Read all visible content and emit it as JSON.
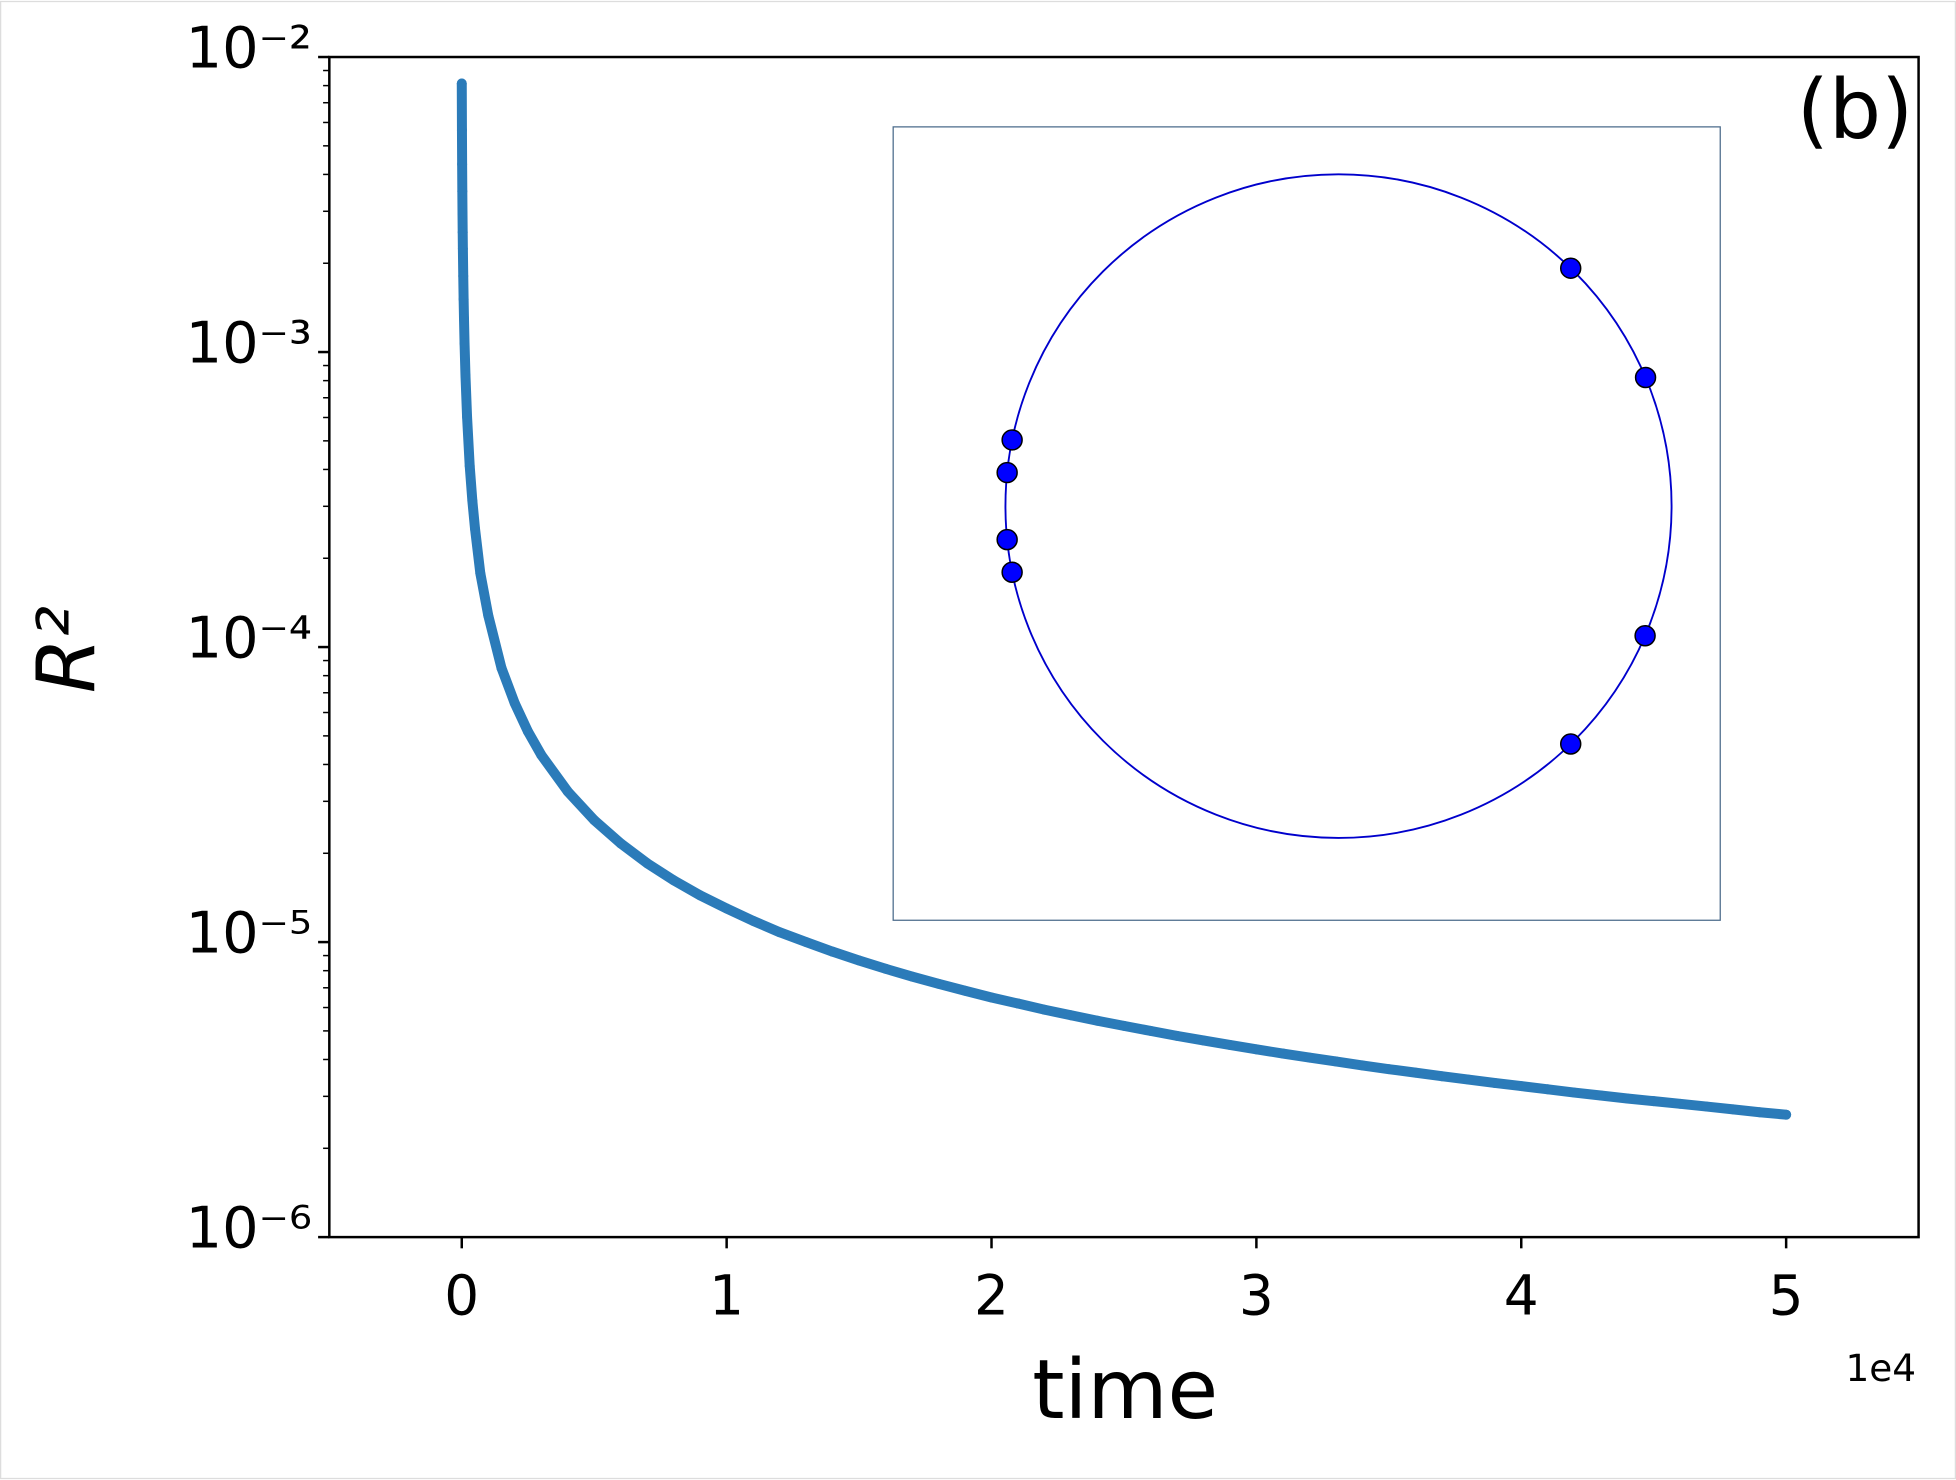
{
  "chart_data": {
    "type": "scatter",
    "xlabel": "time",
    "ylabel": "R²",
    "annotation": "(b)",
    "x_offset_label": "1e4",
    "xlim": [
      -0.5,
      5.5
    ],
    "xticks": [
      0,
      1,
      2,
      3,
      4,
      5
    ],
    "ylim": [
      1e-06,
      0.01
    ],
    "log_y": true,
    "yticks": [
      {
        "value": 0.01,
        "label": "10⁻²"
      },
      {
        "value": 0.001,
        "label": "10⁻³"
      },
      {
        "value": 0.0001,
        "label": "10⁻⁴"
      },
      {
        "value": 1e-05,
        "label": "10⁻⁵"
      },
      {
        "value": 1e-06,
        "label": "10⁻⁶"
      }
    ],
    "series": [
      {
        "color": "#2b7bb9",
        "x": [
          0,
          0.0007,
          0.0014,
          0.0021,
          0.0028,
          0.0035,
          0.0042,
          0.0056,
          0.007,
          0.0084,
          0.0105,
          0.014,
          0.02,
          0.03,
          0.04,
          0.05,
          0.07,
          0.1,
          0.15,
          0.2,
          0.25,
          0.3,
          0.4,
          0.5,
          0.6,
          0.7,
          0.8,
          0.9,
          1.0,
          1.1,
          1.2,
          1.3,
          1.4,
          1.5,
          1.6,
          1.7,
          1.8,
          1.9,
          2.0,
          2.1,
          2.2,
          2.3,
          2.4,
          2.5,
          2.6,
          2.7,
          2.8,
          2.9,
          3.0,
          3.1,
          3.2,
          3.3,
          3.4,
          3.5,
          3.6,
          3.7,
          3.8,
          3.9,
          4.0,
          4.1,
          4.2,
          4.3,
          4.4,
          4.5,
          4.6,
          4.7,
          4.8,
          4.9,
          5.0
        ],
        "values": [
          0.00813,
          0.00565,
          0.00433,
          0.00351,
          0.00295,
          0.00255,
          0.00224,
          0.00181,
          0.00151,
          0.0013,
          0.00107,
          0.000833,
          0.000603,
          0.000411,
          0.000313,
          0.000252,
          0.000178,
          0.000128,
          8.49e-05,
          6.45e-05,
          5.17e-05,
          4.31e-05,
          3.24e-05,
          2.59e-05,
          2.16e-05,
          1.85e-05,
          1.62e-05,
          1.44e-05,
          1.3e-05,
          1.18e-05,
          1.08e-05,
          1e-05,
          9.28e-06,
          8.66e-06,
          8.12e-06,
          7.64e-06,
          7.22e-06,
          6.84e-06,
          6.49e-06,
          6.19e-06,
          5.9e-06,
          5.65e-06,
          5.41e-06,
          5.2e-06,
          5e-06,
          4.81e-06,
          4.64e-06,
          4.48e-06,
          4.33e-06,
          4.19e-06,
          4.06e-06,
          3.94e-06,
          3.82e-06,
          3.71e-06,
          3.61e-06,
          3.51e-06,
          3.42e-06,
          3.33e-06,
          3.25e-06,
          3.17e-06,
          3.09e-06,
          3.02e-06,
          2.95e-06,
          2.89e-06,
          2.83e-06,
          2.77e-06,
          2.71e-06,
          2.65e-06,
          2.6e-06
        ]
      }
    ]
  },
  "inset": {
    "circle_color": "#0000cc",
    "point_color": "#0000ff",
    "angles": [
      45.8,
      22.8,
      168.5,
      174.2,
      185.8,
      191.5,
      337.0,
      314.2
    ]
  }
}
